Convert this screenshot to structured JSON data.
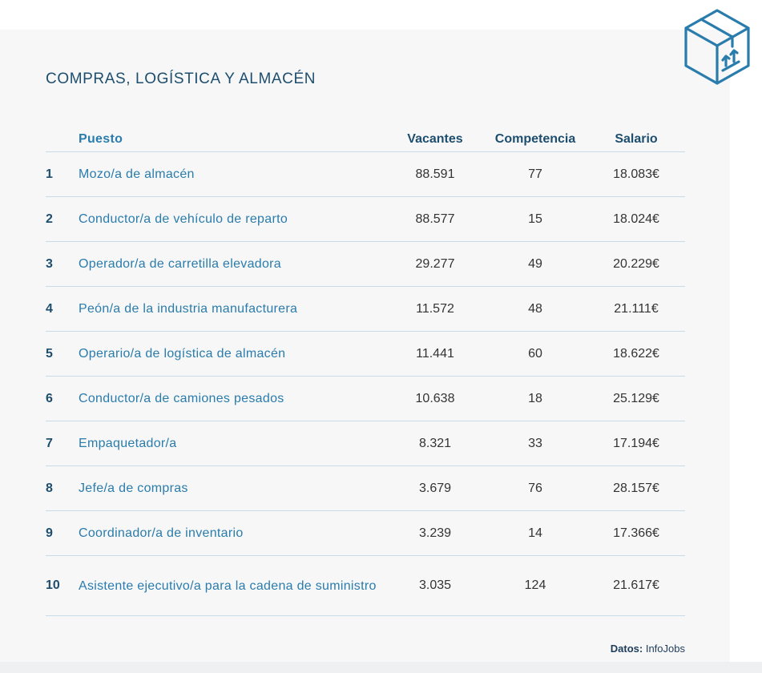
{
  "section_title": "COMPRAS, LOGÍSTICA Y ALMACÉN",
  "icon": "box-arrows-icon",
  "colors": {
    "title": "#1e4e6e",
    "job_link": "#2a7cac",
    "divider": "#c7dbe9",
    "icon_stroke": "#2a7cac",
    "panel_bg": "#f7f7f8"
  },
  "table": {
    "headers": {
      "rank": "",
      "job": "Puesto",
      "vacancies": "Vacantes",
      "competition": "Competencia",
      "salary": "Salario"
    },
    "rows": [
      {
        "rank": "1",
        "job": "Mozo/a de almacén",
        "vacancies": "88.591",
        "competition": "77",
        "salary": "18.083€"
      },
      {
        "rank": "2",
        "job": "Conductor/a de vehículo de reparto",
        "vacancies": "88.577",
        "competition": "15",
        "salary": "18.024€"
      },
      {
        "rank": "3",
        "job": "Operador/a de carretilla elevadora",
        "vacancies": "29.277",
        "competition": "49",
        "salary": "20.229€"
      },
      {
        "rank": "4",
        "job": "Peón/a de la industria manufacturera",
        "vacancies": "11.572",
        "competition": "48",
        "salary": "21.111€"
      },
      {
        "rank": "5",
        "job": "Operario/a de logística de almacén",
        "vacancies": "11.441",
        "competition": "60",
        "salary": "18.622€"
      },
      {
        "rank": "6",
        "job": "Conductor/a de camiones pesados",
        "vacancies": "10.638",
        "competition": "18",
        "salary": "25.129€"
      },
      {
        "rank": "7",
        "job": "Empaquetador/a",
        "vacancies": "8.321",
        "competition": "33",
        "salary": "17.194€"
      },
      {
        "rank": "8",
        "job": "Jefe/a de compras",
        "vacancies": "3.679",
        "competition": "76",
        "salary": "28.157€"
      },
      {
        "rank": "9",
        "job": "Coordinador/a de inventario",
        "vacancies": "3.239",
        "competition": "14",
        "salary": "17.366€"
      },
      {
        "rank": "10",
        "job": "Asistente ejecutivo/a para la cadena de suministro",
        "vacancies": "3.035",
        "competition": "124",
        "salary": "21.617€"
      }
    ]
  },
  "source": {
    "label": "Datos:",
    "value": "InfoJobs"
  }
}
